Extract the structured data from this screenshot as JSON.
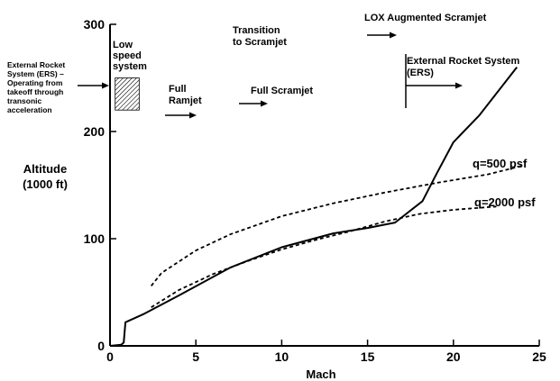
{
  "chart_data": {
    "type": "line",
    "xlabel": "Mach",
    "ylabel": [
      "Altitude",
      "(1000 ft)"
    ],
    "xlim": [
      0,
      25
    ],
    "ylim": [
      0,
      300
    ],
    "x_ticks": [
      "0",
      "5",
      "10",
      "15",
      "20",
      "25"
    ],
    "y_ticks": [
      "0",
      "100",
      "200",
      "300"
    ],
    "grid": false,
    "series": [
      {
        "name": "",
        "style": "solid",
        "points": [
          [
            0,
            0
          ],
          [
            0.65,
            1
          ],
          [
            0.8,
            3
          ],
          [
            0.9,
            22
          ],
          [
            2,
            30
          ],
          [
            4,
            47
          ],
          [
            7,
            73
          ],
          [
            10,
            92
          ],
          [
            13,
            105
          ],
          [
            15,
            110
          ],
          [
            16.6,
            115
          ],
          [
            18.2,
            135
          ],
          [
            19,
            160
          ],
          [
            20,
            190
          ],
          [
            21.5,
            215
          ],
          [
            23.7,
            260
          ]
        ]
      },
      {
        "name": "q=500 psf",
        "style": "dashed",
        "points": [
          [
            2.4,
            56
          ],
          [
            3,
            68
          ],
          [
            5,
            89
          ],
          [
            7,
            104
          ],
          [
            10,
            121
          ],
          [
            13,
            133
          ],
          [
            16,
            143
          ],
          [
            19,
            152
          ],
          [
            22,
            160
          ],
          [
            24,
            168
          ]
        ]
      },
      {
        "name": "q=2000 psf",
        "style": "dashed",
        "points": [
          [
            2.4,
            36
          ],
          [
            4,
            52
          ],
          [
            6,
            67
          ],
          [
            8,
            79
          ],
          [
            10,
            90
          ],
          [
            12,
            99
          ],
          [
            14,
            107
          ],
          [
            16,
            116
          ],
          [
            18,
            123
          ],
          [
            20,
            127
          ],
          [
            22.5,
            130
          ]
        ]
      }
    ],
    "annotations": [
      {
        "id": "ers-left",
        "lines": [
          "External Rocket",
          "System (ERS) –",
          "Operating from",
          "takeoff through",
          "transonic",
          "acceleration"
        ]
      },
      {
        "id": "low-speed",
        "lines": [
          "Low",
          "speed",
          "system"
        ]
      },
      {
        "id": "full-ramjet",
        "lines": [
          "Full",
          "Ramjet"
        ]
      },
      {
        "id": "full-scramjet",
        "lines": [
          "Full Scramjet"
        ]
      },
      {
        "id": "transition",
        "lines": [
          "Transition",
          "to Scramjet"
        ]
      },
      {
        "id": "lox",
        "lines": [
          "LOX Augmented Scramjet"
        ]
      },
      {
        "id": "ers-right",
        "lines": [
          "External Rocket System",
          "(ERS)"
        ]
      }
    ],
    "low_speed_band": {
      "x": [
        0.3,
        1.7
      ],
      "y": [
        220,
        250
      ]
    },
    "ers_marker_x": 17.5
  }
}
